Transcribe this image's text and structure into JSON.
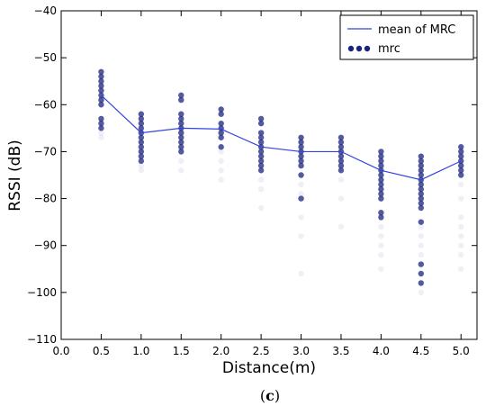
{
  "chart_data": {
    "type": "scatter",
    "xlabel": "Distance(m)",
    "ylabel": "RSSI (dB)",
    "xlim": [
      0.0,
      5.2
    ],
    "ylim": [
      -110,
      -40
    ],
    "x_ticks": [
      "0.0",
      "0.5",
      "1.0",
      "1.5",
      "2.0",
      "2.5",
      "3.0",
      "3.5",
      "4.0",
      "4.5",
      "5.0"
    ],
    "y_ticks": [
      "−40",
      "−50",
      "−60",
      "−70",
      "−80",
      "−90",
      "−100",
      "−110"
    ],
    "grid": false,
    "legend_position": "top-right",
    "colors": {
      "series": "#1a237e",
      "line": "#3344dd"
    },
    "series": [
      {
        "name": "mean of MRC",
        "type": "line",
        "x": [
          0.5,
          1.0,
          1.5,
          2.0,
          2.5,
          3.0,
          3.5,
          4.0,
          4.5,
          5.0
        ],
        "y": [
          -58,
          -66,
          -65,
          -65.2,
          -69,
          -70,
          -70,
          -74,
          -76,
          -72
        ]
      },
      {
        "name": "mrc",
        "type": "scatter",
        "points": [
          {
            "x": 0.5,
            "y": [
              -53,
              -54,
              -55,
              -56,
              -57,
              -58,
              -59,
              -60,
              -63,
              -64,
              -65
            ]
          },
          {
            "x": 1.0,
            "y": [
              -62,
              -63,
              -64,
              -65,
              -66,
              -67,
              -68,
              -69,
              -70,
              -71,
              -72
            ]
          },
          {
            "x": 1.5,
            "y": [
              -58,
              -59,
              -62,
              -63,
              -64,
              -65,
              -66,
              -67,
              -68,
              -69,
              -70
            ]
          },
          {
            "x": 2.0,
            "y": [
              -61,
              -62,
              -64,
              -65,
              -66,
              -67,
              -69
            ]
          },
          {
            "x": 2.5,
            "y": [
              -63,
              -64,
              -66,
              -67,
              -68,
              -69,
              -70,
              -71,
              -72,
              -73,
              -74
            ]
          },
          {
            "x": 3.0,
            "y": [
              -67,
              -68,
              -69,
              -70,
              -71,
              -72,
              -73,
              -75,
              -80
            ]
          },
          {
            "x": 3.5,
            "y": [
              -67,
              -68,
              -69,
              -70,
              -71,
              -72,
              -73,
              -74
            ]
          },
          {
            "x": 4.0,
            "y": [
              -70,
              -71,
              -72,
              -73,
              -74,
              -75,
              -76,
              -77,
              -78,
              -79,
              -80,
              -83,
              -84
            ]
          },
          {
            "x": 4.5,
            "y": [
              -71,
              -72,
              -73,
              -74,
              -75,
              -76,
              -77,
              -78,
              -79,
              -80,
              -81,
              -82,
              -85,
              -94,
              -96,
              -98
            ]
          },
          {
            "x": 5.0,
            "y": [
              -69,
              -70,
              -71,
              -72,
              -73,
              -74,
              -75
            ]
          }
        ],
        "faint_points": [
          {
            "x": 0.5,
            "y": [
              -66,
              -67
            ]
          },
          {
            "x": 1.0,
            "y": [
              -73,
              -74
            ]
          },
          {
            "x": 1.5,
            "y": [
              -72,
              -74
            ]
          },
          {
            "x": 2.0,
            "y": [
              -70,
              -72,
              -74,
              -76
            ]
          },
          {
            "x": 2.5,
            "y": [
              -76,
              -78,
              -82
            ]
          },
          {
            "x": 3.0,
            "y": [
              -77,
              -79,
              -84,
              -88,
              -96
            ]
          },
          {
            "x": 3.5,
            "y": [
              -76,
              -80,
              -86
            ]
          },
          {
            "x": 4.0,
            "y": [
              -86,
              -88,
              -90,
              -92,
              -95
            ]
          },
          {
            "x": 4.5,
            "y": [
              -86,
              -88,
              -90,
              -92,
              -100
            ]
          },
          {
            "x": 5.0,
            "y": [
              -77,
              -80,
              -84,
              -86,
              -88,
              -90,
              -92,
              -95
            ]
          }
        ]
      }
    ]
  },
  "caption": {
    "open": "(",
    "letter": "c",
    "close": ")"
  }
}
